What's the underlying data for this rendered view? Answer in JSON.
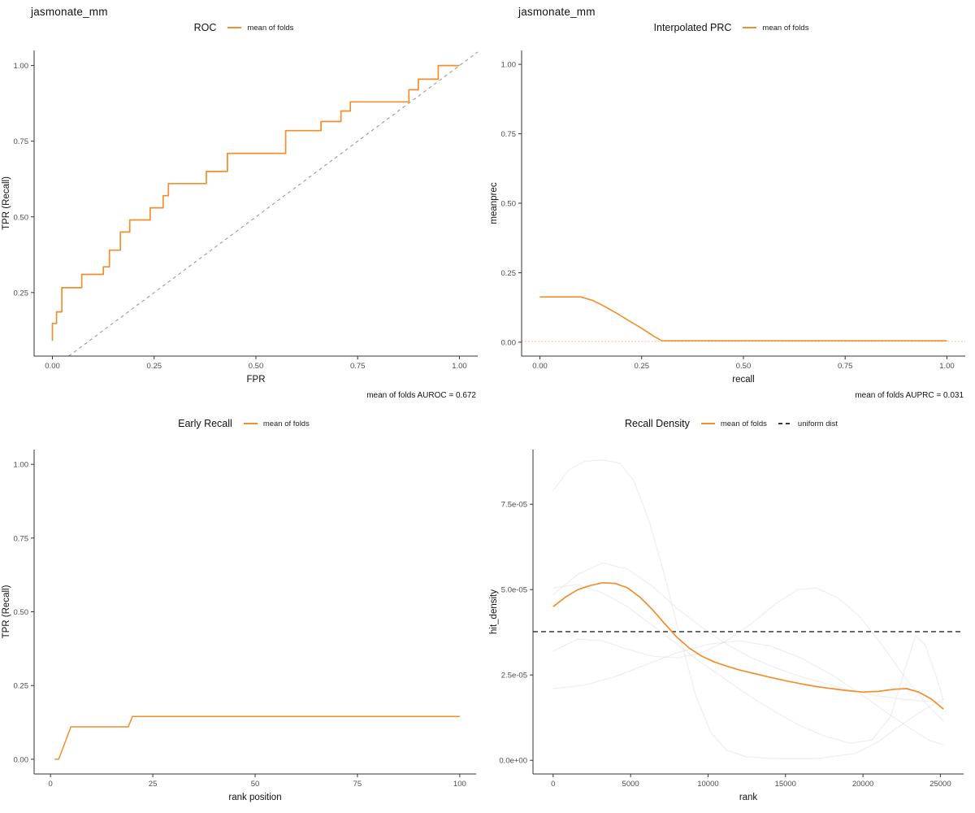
{
  "accent_color": "#F28E2B",
  "chart_data": [
    {
      "type": "line",
      "suptitle": "jasmonate_mm",
      "title": "ROC",
      "legend": [
        {
          "label": "mean of folds",
          "color": "#F28E2B"
        }
      ],
      "caption": "mean of folds AUROC = 0.672",
      "xlabel": "FPR",
      "ylabel": "TPR (Recall)",
      "xlim": [
        -0.045,
        1.045
      ],
      "ylim": [
        0.04,
        1.05
      ],
      "grid": false,
      "legend_position": "top",
      "xticks": {
        "values": [
          0,
          0.25,
          0.5,
          0.75,
          1
        ],
        "labels": [
          "0.00",
          "0.25",
          "0.50",
          "0.75",
          "1.00"
        ]
      },
      "yticks": {
        "values": [
          0.25,
          0.5,
          0.75,
          1
        ],
        "labels": [
          "0.25",
          "0.50",
          "0.75",
          "1.00"
        ]
      },
      "series": [
        {
          "name": "chance-diagonal",
          "color": "#999999",
          "width": 1.1,
          "dash": "4,4",
          "points": [
            [
              0.04,
              0.04
            ],
            [
              1.045,
              1.045
            ]
          ]
        },
        {
          "name": "mean-of-folds",
          "color": "#F28E2B",
          "width": 1.7,
          "points": [
            [
              0,
              0.09
            ],
            [
              0,
              0.148
            ],
            [
              0.01,
              0.148
            ],
            [
              0.01,
              0.186
            ],
            [
              0.023,
              0.186
            ],
            [
              0.023,
              0.266
            ],
            [
              0.072,
              0.266
            ],
            [
              0.072,
              0.31
            ],
            [
              0.125,
              0.31
            ],
            [
              0.125,
              0.335
            ],
            [
              0.14,
              0.335
            ],
            [
              0.14,
              0.39
            ],
            [
              0.167,
              0.39
            ],
            [
              0.167,
              0.45
            ],
            [
              0.19,
              0.45
            ],
            [
              0.19,
              0.49
            ],
            [
              0.24,
              0.49
            ],
            [
              0.24,
              0.53
            ],
            [
              0.272,
              0.53
            ],
            [
              0.272,
              0.57
            ],
            [
              0.285,
              0.57
            ],
            [
              0.285,
              0.61
            ],
            [
              0.378,
              0.61
            ],
            [
              0.378,
              0.65
            ],
            [
              0.43,
              0.65
            ],
            [
              0.43,
              0.71
            ],
            [
              0.573,
              0.71
            ],
            [
              0.573,
              0.785
            ],
            [
              0.66,
              0.785
            ],
            [
              0.66,
              0.815
            ],
            [
              0.709,
              0.815
            ],
            [
              0.709,
              0.85
            ],
            [
              0.732,
              0.85
            ],
            [
              0.732,
              0.88
            ],
            [
              0.876,
              0.88
            ],
            [
              0.876,
              0.92
            ],
            [
              0.899,
              0.92
            ],
            [
              0.899,
              0.955
            ],
            [
              0.948,
              0.955
            ],
            [
              0.948,
              1.0
            ],
            [
              1.0,
              1.0
            ]
          ]
        }
      ]
    },
    {
      "type": "line",
      "suptitle": "jasmonate_mm",
      "title": "Interpolated PRC",
      "legend": [
        {
          "label": "mean of folds",
          "color": "#F28E2B"
        }
      ],
      "caption": "mean of folds AUPRC = 0.031",
      "xlabel": "recall",
      "ylabel": "meanprec",
      "xlim": [
        -0.045,
        1.045
      ],
      "ylim": [
        -0.05,
        1.05
      ],
      "grid": false,
      "legend_position": "top",
      "xticks": {
        "values": [
          0,
          0.25,
          0.5,
          0.75,
          1
        ],
        "labels": [
          "0.00",
          "0.25",
          "0.50",
          "0.75",
          "1.00"
        ]
      },
      "yticks": {
        "values": [
          0,
          0.25,
          0.5,
          0.75,
          1
        ],
        "labels": [
          "0.00",
          "0.25",
          "0.50",
          "0.75",
          "1.00"
        ]
      },
      "series": [
        {
          "name": "random-baseline",
          "color": "#F9C089",
          "width": 1.2,
          "dash": "1.5,2.6",
          "points": [
            [
              -0.045,
              0.003
            ],
            [
              1.045,
              0.003
            ]
          ]
        },
        {
          "name": "mean-of-folds",
          "color": "#F28E2B",
          "width": 1.6,
          "points": [
            [
              0,
              0.163
            ],
            [
              0.1,
              0.163
            ],
            [
              0.13,
              0.15
            ],
            [
              0.16,
              0.128
            ],
            [
              0.19,
              0.103
            ],
            [
              0.22,
              0.076
            ],
            [
              0.25,
              0.05
            ],
            [
              0.28,
              0.021
            ],
            [
              0.3,
              0.005
            ],
            [
              0.5,
              0.005
            ],
            [
              0.75,
              0.005
            ],
            [
              1.0,
              0.005
            ]
          ]
        }
      ]
    },
    {
      "type": "line",
      "title": "Early Recall",
      "legend": [
        {
          "label": "mean of folds",
          "color": "#F28E2B"
        }
      ],
      "xlabel": "rank position",
      "ylabel": "TPR (Recall)",
      "xlim": [
        -4,
        104
      ],
      "ylim": [
        -0.05,
        1.05
      ],
      "grid": false,
      "legend_position": "top",
      "xticks": {
        "values": [
          0,
          25,
          50,
          75,
          100
        ],
        "labels": [
          "0",
          "25",
          "50",
          "75",
          "100"
        ]
      },
      "yticks": {
        "values": [
          0,
          0.25,
          0.5,
          0.75,
          1
        ],
        "labels": [
          "0.00",
          "0.25",
          "0.50",
          "0.75",
          "1.00"
        ]
      },
      "series": [
        {
          "name": "mean-of-folds",
          "color": "#F28E2B",
          "width": 1.5,
          "points": [
            [
              1,
              0.0
            ],
            [
              2,
              0.0
            ],
            [
              5,
              0.11
            ],
            [
              19,
              0.11
            ],
            [
              20,
              0.145
            ],
            [
              100,
              0.145
            ]
          ]
        }
      ]
    },
    {
      "type": "line",
      "title": "Recall Density",
      "legend": [
        {
          "label": "mean of folds",
          "color": "#F28E2B"
        },
        {
          "label": "uniform dist",
          "color": "#3a3a3a",
          "dash": "dashed"
        }
      ],
      "xlabel": "rank",
      "ylabel": "hit_density",
      "xlim": [
        -1300,
        26500
      ],
      "ylim": [
        -4e-06,
        9.1e-05
      ],
      "grid": false,
      "legend_position": "top",
      "xticks": {
        "values": [
          0,
          5000,
          10000,
          15000,
          20000,
          25000
        ],
        "labels": [
          "0",
          "5000",
          "10000",
          "15000",
          "20000",
          "25000"
        ]
      },
      "yticks": {
        "values": [
          0,
          2.5e-05,
          5e-05,
          7.5e-05
        ],
        "labels": [
          "0.0e+00",
          "2.5e-05",
          "5.0e-05",
          "7.5e-05"
        ]
      },
      "series": [
        {
          "name": "fold-1",
          "color": "#d9d9d9",
          "opacity": 0.45,
          "width": 1.2,
          "points": [
            [
              0,
              7.9e-05
            ],
            [
              1000,
              8.5e-05
            ],
            [
              2000,
              8.75e-05
            ],
            [
              3200,
              8.8e-05
            ],
            [
              4300,
              8.7e-05
            ],
            [
              5200,
              8.2e-05
            ],
            [
              6200,
              7e-05
            ],
            [
              7200,
              5.4e-05
            ],
            [
              8200,
              3.6e-05
            ],
            [
              9200,
              1.9e-05
            ],
            [
              10200,
              8e-06
            ],
            [
              11200,
              3e-06
            ],
            [
              12500,
              1e-06
            ],
            [
              14500,
              5e-07
            ],
            [
              17000,
              5e-07
            ],
            [
              19500,
              2e-06
            ],
            [
              21000,
              5.5e-06
            ],
            [
              22500,
              1.05e-05
            ],
            [
              24000,
              1.5e-05
            ],
            [
              25200,
              1.8e-05
            ]
          ]
        },
        {
          "name": "fold-2",
          "color": "#d9d9d9",
          "opacity": 0.45,
          "width": 1.2,
          "points": [
            [
              0,
              4.85e-05
            ],
            [
              1600,
              5.45e-05
            ],
            [
              3200,
              5.78e-05
            ],
            [
              4800,
              5.6e-05
            ],
            [
              6400,
              5.1e-05
            ],
            [
              8000,
              4.45e-05
            ],
            [
              9600,
              3.9e-05
            ],
            [
              11200,
              3.4e-05
            ],
            [
              12800,
              3e-05
            ],
            [
              14400,
              2.7e-05
            ],
            [
              16000,
              2.45e-05
            ],
            [
              17600,
              2.25e-05
            ],
            [
              19200,
              2.05e-05
            ],
            [
              20800,
              1.9e-05
            ],
            [
              22400,
              1.8e-05
            ],
            [
              24000,
              1.73e-05
            ],
            [
              25200,
              1.7e-05
            ]
          ]
        },
        {
          "name": "fold-3",
          "color": "#d9d9d9",
          "opacity": 0.45,
          "width": 1.2,
          "points": [
            [
              0,
              3.2e-05
            ],
            [
              1600,
              3.55e-05
            ],
            [
              3200,
              3.5e-05
            ],
            [
              4800,
              3.25e-05
            ],
            [
              6400,
              3.05e-05
            ],
            [
              8000,
              3e-05
            ],
            [
              9600,
              3.15e-05
            ],
            [
              11200,
              3.5e-05
            ],
            [
              12800,
              4e-05
            ],
            [
              14400,
              4.6e-05
            ],
            [
              15800,
              5e-05
            ],
            [
              17000,
              5.05e-05
            ],
            [
              18400,
              4.75e-05
            ],
            [
              19800,
              4.2e-05
            ],
            [
              21200,
              3.4e-05
            ],
            [
              22600,
              2.5e-05
            ],
            [
              24000,
              1.7e-05
            ],
            [
              25200,
              1.15e-05
            ]
          ]
        },
        {
          "name": "fold-4",
          "color": "#d9d9d9",
          "opacity": 0.45,
          "width": 1.2,
          "points": [
            [
              0,
              2.1e-05
            ],
            [
              2000,
              2.2e-05
            ],
            [
              4000,
              2.45e-05
            ],
            [
              6000,
              2.8e-05
            ],
            [
              8000,
              3.15e-05
            ],
            [
              10000,
              3.4e-05
            ],
            [
              12000,
              3.5e-05
            ],
            [
              14000,
              3.35e-05
            ],
            [
              16000,
              3e-05
            ],
            [
              18000,
              2.5e-05
            ],
            [
              20000,
              1.9e-05
            ],
            [
              21500,
              1.4e-05
            ],
            [
              23000,
              9.5e-06
            ],
            [
              24200,
              6e-06
            ],
            [
              25200,
              4.5e-06
            ]
          ]
        },
        {
          "name": "fold-5",
          "color": "#d9d9d9",
          "opacity": 0.45,
          "width": 1.2,
          "points": [
            [
              0,
              5.05e-05
            ],
            [
              1600,
              5.15e-05
            ],
            [
              3200,
              4.9e-05
            ],
            [
              4800,
              4.5e-05
            ],
            [
              6400,
              3.95e-05
            ],
            [
              8000,
              3.4e-05
            ],
            [
              9600,
              2.85e-05
            ],
            [
              11200,
              2.35e-05
            ],
            [
              12800,
              1.85e-05
            ],
            [
              14400,
              1.4e-05
            ],
            [
              16000,
              1e-05
            ],
            [
              17600,
              7e-06
            ],
            [
              19200,
              5e-06
            ],
            [
              20600,
              6e-06
            ],
            [
              21800,
              1.3e-05
            ],
            [
              22800,
              2.8e-05
            ],
            [
              23400,
              3.65e-05
            ],
            [
              24000,
              3.4e-05
            ],
            [
              24700,
              2.5e-05
            ],
            [
              25200,
              1.75e-05
            ]
          ]
        },
        {
          "name": "uniform-dist",
          "color": "#4a4a4a",
          "width": 1.6,
          "dash": "6,4",
          "points": [
            [
              -1300,
              3.77e-05
            ],
            [
              26500,
              3.77e-05
            ]
          ]
        },
        {
          "name": "mean-of-folds",
          "color": "#F28E2B",
          "width": 1.7,
          "points": [
            [
              0,
              4.5e-05
            ],
            [
              800,
              4.78e-05
            ],
            [
              1600,
              5e-05
            ],
            [
              2400,
              5.12e-05
            ],
            [
              3200,
              5.2e-05
            ],
            [
              4000,
              5.18e-05
            ],
            [
              4800,
              5.05e-05
            ],
            [
              5600,
              4.78e-05
            ],
            [
              6400,
              4.42e-05
            ],
            [
              7200,
              4e-05
            ],
            [
              8000,
              3.6e-05
            ],
            [
              8800,
              3.28e-05
            ],
            [
              9600,
              3.05e-05
            ],
            [
              10400,
              2.88e-05
            ],
            [
              11200,
              2.76e-05
            ],
            [
              12000,
              2.65e-05
            ],
            [
              13000,
              2.54e-05
            ],
            [
              14000,
              2.43e-05
            ],
            [
              15000,
              2.33e-05
            ],
            [
              16000,
              2.24e-05
            ],
            [
              17000,
              2.16e-05
            ],
            [
              18000,
              2.1e-05
            ],
            [
              19000,
              2.04e-05
            ],
            [
              20000,
              2e-05
            ],
            [
              21000,
              2.02e-05
            ],
            [
              22000,
              2.08e-05
            ],
            [
              22800,
              2.1e-05
            ],
            [
              23600,
              2e-05
            ],
            [
              24400,
              1.8e-05
            ],
            [
              25200,
              1.5e-05
            ]
          ]
        }
      ]
    }
  ]
}
